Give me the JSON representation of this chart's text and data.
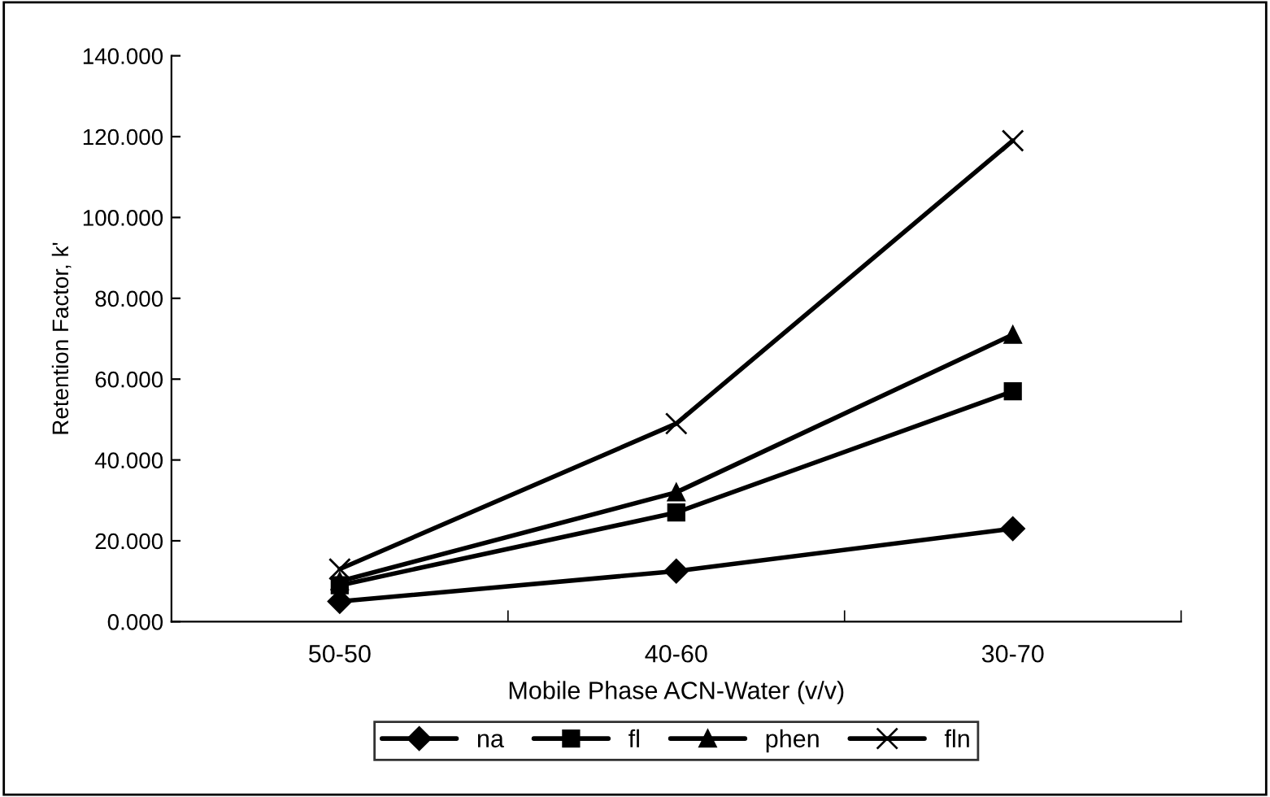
{
  "chart_data": {
    "type": "line",
    "xlabel": "Mobile Phase ACN-Water (v/v)",
    "ylabel": "Retention Factor, k'",
    "categories": [
      "50-50",
      "40-60",
      "30-70"
    ],
    "series": [
      {
        "name": "na",
        "color": "#000000",
        "marker": "diamond",
        "values": [
          5,
          12.5,
          23
        ]
      },
      {
        "name": "fl",
        "color": "#000000",
        "marker": "square",
        "values": [
          9,
          27,
          57
        ]
      },
      {
        "name": "phen",
        "color": "#000000",
        "marker": "triangle",
        "values": [
          10,
          32,
          71
        ]
      },
      {
        "name": "fln",
        "color": "#000000",
        "marker": "cross",
        "values": [
          13,
          49,
          119
        ]
      }
    ],
    "ylim": [
      0,
      140
    ],
    "yticks": [
      {
        "value": 0,
        "label": "0.000"
      },
      {
        "value": 20,
        "label": "20.000"
      },
      {
        "value": 40,
        "label": "40.000"
      },
      {
        "value": 60,
        "label": "60.000"
      },
      {
        "value": 80,
        "label": "80.000"
      },
      {
        "value": 100,
        "label": "100.000"
      },
      {
        "value": 120,
        "label": "120.000"
      },
      {
        "value": 140,
        "label": "140.000"
      }
    ],
    "grid": false,
    "legend": "bottom",
    "line_style": "solid"
  }
}
